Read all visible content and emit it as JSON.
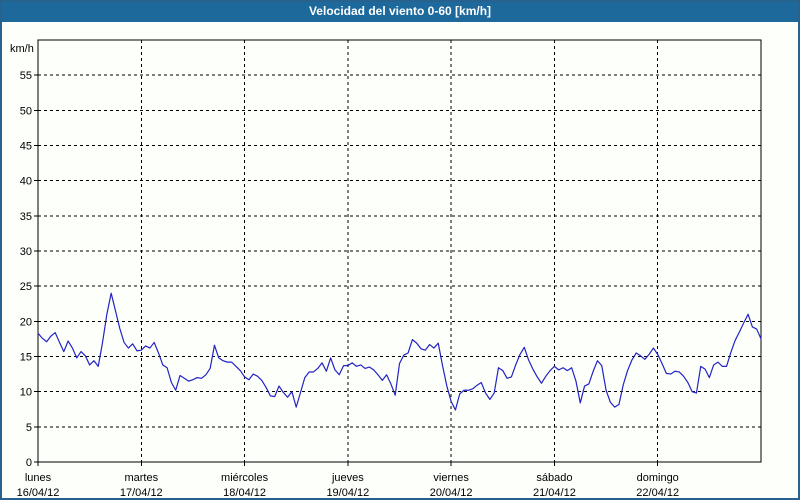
{
  "window": {
    "title": "Velocidad del viento 0-60 [km/h]"
  },
  "colors": {
    "titlebar_bg": "#1d699c",
    "titlebar_text": "#ffffff",
    "page_bg": "#fdfffb",
    "outer_border": "#27628f",
    "axis": "#000000",
    "grid": "#000000",
    "line": "#2323c3",
    "label_text": "#000000"
  },
  "chart_data": {
    "type": "line",
    "title": "Velocidad del viento 0-60 [km/h]",
    "ylabel": "km/h",
    "xlabel": "",
    "ylim": [
      0,
      60
    ],
    "yticks": [
      0,
      5,
      10,
      15,
      20,
      25,
      30,
      35,
      40,
      45,
      50,
      55
    ],
    "grid": "dashed",
    "legend_position": "none",
    "x_day_labels": [
      {
        "name": "lunes",
        "date": "16/04/12"
      },
      {
        "name": "martes",
        "date": "17/04/12"
      },
      {
        "name": "miércoles",
        "date": "18/04/12"
      },
      {
        "name": "jueves",
        "date": "19/04/12"
      },
      {
        "name": "viernes",
        "date": "20/04/12"
      },
      {
        "name": "sábado",
        "date": "21/04/12"
      },
      {
        "name": "domingo",
        "date": "22/04/12"
      }
    ],
    "x_unit": "hours",
    "x_range": [
      0,
      168
    ],
    "series": [
      {
        "name": "Velocidad del viento",
        "values": [
          18.3,
          17.6,
          17.1,
          17.9,
          18.4,
          17.0,
          15.7,
          17.2,
          16.2,
          14.8,
          15.7,
          15.1,
          13.8,
          14.4,
          13.6,
          17.0,
          21.0,
          24.0,
          21.5,
          19.0,
          17.0,
          16.2,
          16.8,
          15.8,
          15.9,
          16.5,
          16.2,
          17.0,
          15.5,
          13.8,
          13.4,
          11.3,
          10.2,
          12.3,
          11.9,
          11.5,
          11.7,
          12.0,
          11.9,
          12.4,
          13.3,
          16.6,
          14.8,
          14.4,
          14.2,
          14.2,
          13.6,
          13.0,
          12.1,
          11.7,
          12.5,
          12.2,
          11.6,
          10.6,
          9.4,
          9.3,
          10.8,
          9.9,
          9.2,
          10.0,
          7.8,
          9.9,
          12.0,
          12.8,
          12.8,
          13.3,
          14.1,
          12.9,
          14.8,
          13.1,
          12.4,
          13.7,
          13.7,
          14.1,
          13.6,
          13.8,
          13.3,
          13.5,
          13.1,
          12.4,
          11.6,
          12.4,
          11.1,
          9.5,
          14.0,
          15.2,
          15.5,
          17.4,
          16.9,
          16.1,
          15.9,
          16.7,
          16.2,
          16.9,
          13.7,
          10.8,
          8.6,
          7.4,
          9.7,
          10.2,
          10.2,
          10.4,
          10.9,
          11.3,
          9.8,
          8.9,
          9.8,
          13.4,
          13.0,
          11.9,
          12.1,
          13.8,
          15.3,
          16.3,
          14.5,
          13.2,
          12.1,
          11.2,
          12.2,
          13.0,
          13.6,
          13.1,
          13.4,
          13.0,
          13.4,
          11.5,
          8.4,
          10.8,
          11.1,
          12.9,
          14.4,
          13.7,
          10.2,
          8.5,
          7.8,
          8.2,
          11.0,
          13.0,
          14.5,
          15.5,
          15.1,
          14.6,
          15.3,
          16.2,
          15.3,
          14.0,
          12.6,
          12.5,
          12.9,
          12.8,
          12.2,
          11.3,
          10.0,
          9.8,
          13.6,
          13.2,
          12.0,
          13.8,
          14.2,
          13.6,
          13.6,
          15.6,
          17.3,
          18.5,
          19.8,
          21.0,
          19.2,
          18.9,
          17.5
        ]
      }
    ]
  }
}
